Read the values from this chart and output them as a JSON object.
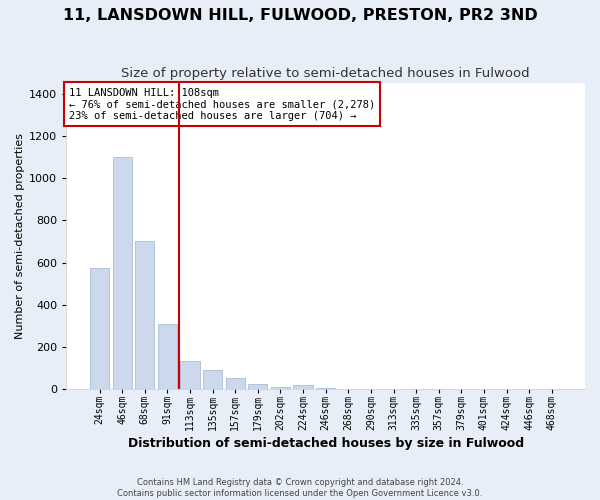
{
  "title": "11, LANSDOWN HILL, FULWOOD, PRESTON, PR2 3ND",
  "subtitle": "Size of property relative to semi-detached houses in Fulwood",
  "xlabel": "Distribution of semi-detached houses by size in Fulwood",
  "ylabel": "Number of semi-detached properties",
  "footer_line1": "Contains HM Land Registry data © Crown copyright and database right 2024.",
  "footer_line2": "Contains public sector information licensed under the Open Government Licence v3.0.",
  "bin_labels": [
    "24sqm",
    "46sqm",
    "68sqm",
    "91sqm",
    "113sqm",
    "135sqm",
    "157sqm",
    "179sqm",
    "202sqm",
    "224sqm",
    "246sqm",
    "268sqm",
    "290sqm",
    "313sqm",
    "335sqm",
    "357sqm",
    "379sqm",
    "401sqm",
    "424sqm",
    "446sqm",
    "468sqm"
  ],
  "bar_values": [
    575,
    1100,
    700,
    310,
    135,
    90,
    55,
    25,
    10,
    20,
    5,
    0,
    0,
    0,
    0,
    0,
    0,
    0,
    0,
    0,
    0
  ],
  "bar_color": "#ccd9ed",
  "bar_edgecolor": "#aabdd8",
  "vline_x": 3.5,
  "vline_color": "#cc0000",
  "annotation_box_text": "11 LANSDOWN HILL: 108sqm\n← 76% of semi-detached houses are smaller (2,278)\n23% of semi-detached houses are larger (704) →",
  "annotation_box_color": "#cc0000",
  "annotation_box_facecolor": "white",
  "ylim": [
    0,
    1450
  ],
  "yticks": [
    0,
    200,
    400,
    600,
    800,
    1000,
    1200,
    1400
  ],
  "background_color": "#e8eef8",
  "plot_background": "white",
  "grid_color": "white",
  "title_fontsize": 11.5,
  "subtitle_fontsize": 9.5,
  "xlabel_fontsize": 9,
  "ylabel_fontsize": 8,
  "tick_fontsize": 7,
  "ytick_fontsize": 8,
  "annot_fontsize": 7.5,
  "footer_fontsize": 6
}
